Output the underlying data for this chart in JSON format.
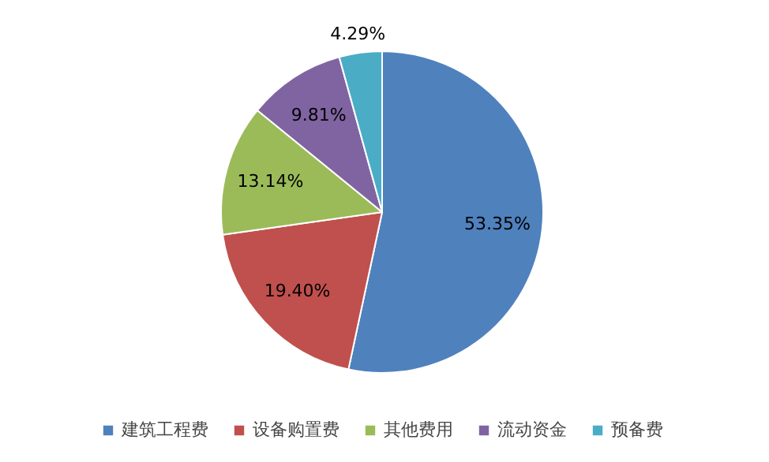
{
  "chart_data": {
    "type": "pie",
    "categories": [
      "建筑工程费",
      "设备购置费",
      "其他费用",
      "流动资金",
      "预备费"
    ],
    "values": [
      53.35,
      19.4,
      13.14,
      9.81,
      4.29
    ],
    "colors": [
      "#4f81bd",
      "#c0504d",
      "#9bbb59",
      "#8064a2",
      "#4bacc6"
    ],
    "value_labels": [
      "53.35%",
      "19.40%",
      "13.14%",
      "9.81%",
      "4.29%"
    ],
    "legend": "bottom"
  }
}
